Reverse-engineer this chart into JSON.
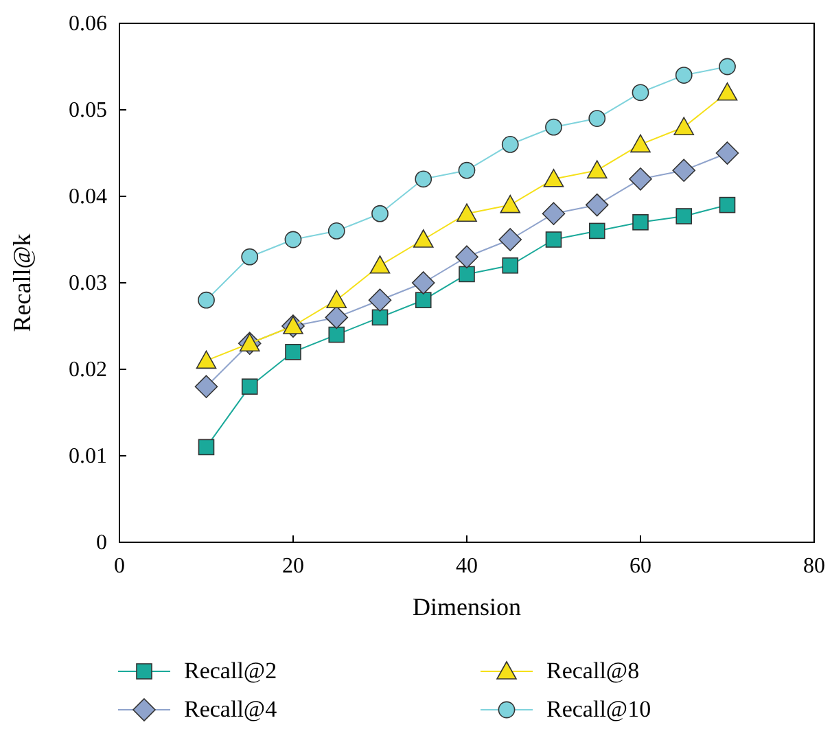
{
  "chart_data": {
    "type": "line",
    "xlabel": "Dimension",
    "ylabel": "Recall@k",
    "x": [
      10,
      15,
      20,
      25,
      30,
      35,
      40,
      45,
      50,
      55,
      60,
      65,
      70
    ],
    "xlim": [
      0,
      80
    ],
    "xticks": [
      0,
      20,
      40,
      60,
      80
    ],
    "ylim": [
      0,
      0.06
    ],
    "yticks": [
      0,
      0.01,
      0.02,
      0.03,
      0.04,
      0.05,
      0.06
    ],
    "legend": "bottom",
    "grid": false,
    "series": [
      {
        "name": "Recall@2",
        "color": "#1aa99a",
        "marker": "square",
        "values": [
          0.011,
          0.018,
          0.022,
          0.024,
          0.026,
          0.028,
          0.031,
          0.032,
          0.035,
          0.036,
          0.037,
          0.0377,
          0.039
        ]
      },
      {
        "name": "Recall@4",
        "color": "#8fa3cc",
        "marker": "diamond",
        "values": [
          0.018,
          0.023,
          0.025,
          0.026,
          0.028,
          0.03,
          0.033,
          0.035,
          0.038,
          0.039,
          0.042,
          0.043,
          0.045
        ]
      },
      {
        "name": "Recall@8",
        "color": "#f5e019",
        "marker": "triangle",
        "values": [
          0.021,
          0.023,
          0.025,
          0.028,
          0.032,
          0.035,
          0.038,
          0.039,
          0.042,
          0.043,
          0.046,
          0.048,
          0.052
        ]
      },
      {
        "name": "Recall@10",
        "color": "#7fd3dc",
        "marker": "circle",
        "values": [
          0.028,
          0.033,
          0.035,
          0.036,
          0.038,
          0.042,
          0.043,
          0.046,
          0.048,
          0.049,
          0.052,
          0.054,
          0.055
        ]
      }
    ]
  }
}
